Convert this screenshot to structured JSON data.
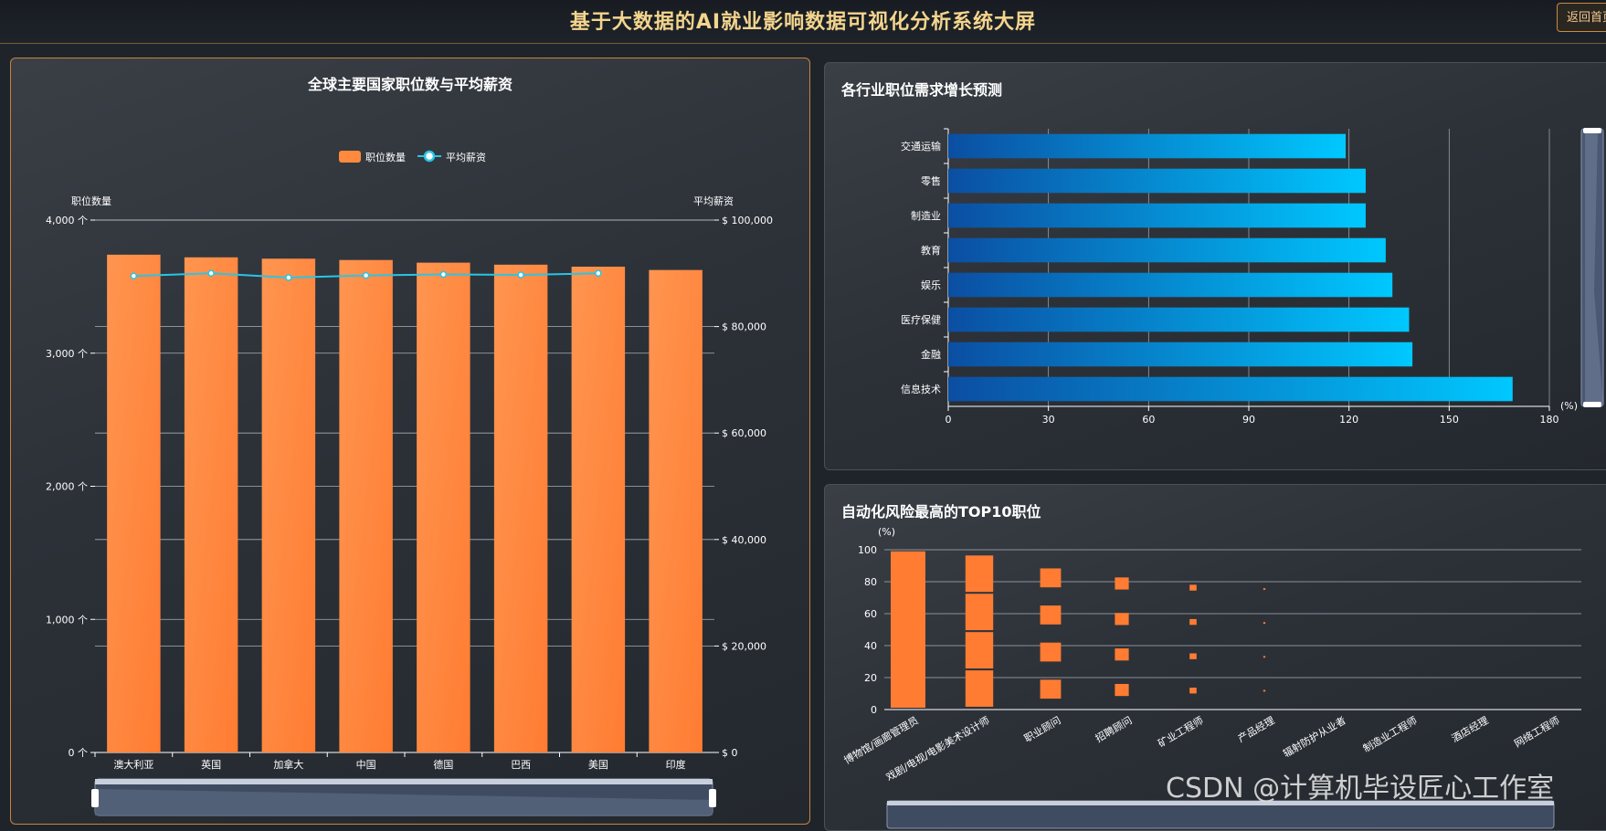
{
  "header": {
    "title": "基于大数据的AI就业影响数据可视化分析系统大屏",
    "back_button": "返回首页"
  },
  "panel_jobs": {
    "title": "全球主要国家职位数与平均薪资",
    "legend_bar": "职位数量",
    "legend_line": "平均薪资",
    "left_axis_label": "职位数量",
    "right_axis_label": "平均薪资"
  },
  "panel_growth": {
    "title": "各行业职位需求增长预测",
    "unit": "(%)"
  },
  "panel_risk": {
    "title": "自动化风险最高的TOP10职位",
    "unit": "(%)"
  },
  "watermark": "CSDN @计算机毕设匠心工作室",
  "colors": {
    "accent": "#f4d58d",
    "bar_orange": "#ff8a3d",
    "line_cyan": "#29c5e6",
    "blue_start": "#0b4ea2",
    "blue_end": "#00c8ff"
  },
  "chart_data": [
    {
      "type": "bar",
      "categories": [
        "澳大利亚",
        "英国",
        "加拿大",
        "中国",
        "德国",
        "巴西",
        "美国",
        "印度"
      ],
      "series": [
        {
          "name": "职位数量",
          "axis": "left",
          "values": [
            3740,
            3720,
            3710,
            3700,
            3680,
            3665,
            3650,
            3625
          ]
        },
        {
          "name": "平均薪资",
          "type": "line",
          "axis": "right",
          "values": [
            89500,
            90000,
            89200,
            89600,
            89800,
            89700,
            90000,
            null
          ]
        }
      ],
      "left_axis": {
        "min": 0,
        "max": 4000,
        "ticks": [
          0,
          1000,
          2000,
          3000,
          4000
        ],
        "tick_labels": [
          "0 个",
          "1,000 个",
          "2,000 个",
          "3,000 个",
          "4,000 个"
        ]
      },
      "right_axis": {
        "min": 0,
        "max": 100000,
        "ticks": [
          0,
          20000,
          40000,
          60000,
          80000,
          100000
        ],
        "tick_labels": [
          "$ 0",
          "$ 20,000",
          "$ 40,000",
          "$ 60,000",
          "$ 80,000",
          "$ 100,000"
        ]
      },
      "legend": "top-center"
    },
    {
      "type": "bar",
      "orientation": "horizontal",
      "categories": [
        "交通运输",
        "零售",
        "制造业",
        "教育",
        "娱乐",
        "医疗保健",
        "金融",
        "信息技术"
      ],
      "values": [
        119,
        125,
        125,
        131,
        133,
        138,
        139,
        169
      ],
      "xlim": [
        0,
        180
      ],
      "x_ticks": [
        0,
        30,
        60,
        90,
        120,
        150,
        180
      ]
    },
    {
      "type": "bar",
      "categories": [
        "博物馆/画廊管理员",
        "戏剧/电视/电影美术设计师",
        "职业顾问",
        "招聘顾问",
        "矿业工程师",
        "产品经理",
        "辐射防护从业者",
        "制造业工程师",
        "酒店经理",
        "网络工程师"
      ],
      "values": [
        99,
        97,
        94,
        90,
        87,
        86,
        0,
        0,
        0,
        0
      ],
      "ylim": [
        0,
        100
      ],
      "y_ticks": [
        0,
        20,
        40,
        60,
        80,
        100
      ]
    }
  ]
}
